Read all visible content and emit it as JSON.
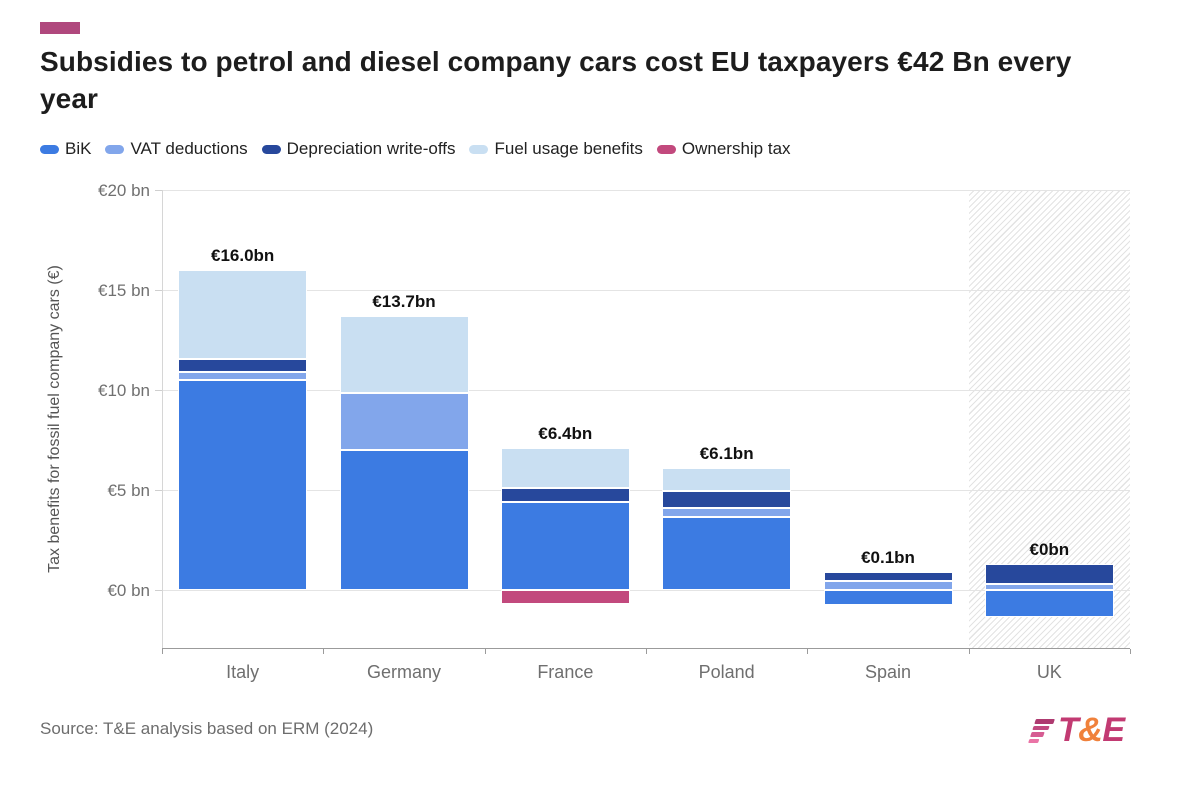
{
  "header": {
    "accent_color": "#B0487D",
    "title": "Subsidies to petrol and diesel company cars cost EU taxpayers €42 Bn every year"
  },
  "chart_data": {
    "type": "bar",
    "stacked": true,
    "title": "Subsidies to petrol and diesel company cars cost EU taxpayers €42 Bn every year",
    "ylabel": "Tax benefits for fossil fuel company cars (€)",
    "xlabel": "",
    "categories": [
      "Italy",
      "Germany",
      "France",
      "Poland",
      "Spain",
      "UK"
    ],
    "series": [
      {
        "name": "BiK",
        "color": "#3C7BE2",
        "values": [
          10.5,
          7.0,
          4.38,
          3.65,
          -0.75,
          -1.35
        ]
      },
      {
        "name": "VAT deductions",
        "color": "#82A6EB",
        "values": [
          0.4,
          2.85,
          0,
          0.45,
          0.43,
          0.3
        ]
      },
      {
        "name": "Depreciation write-offs",
        "color": "#27489C",
        "values": [
          0.65,
          0,
          0.7,
          0.85,
          0.45,
          1.0
        ]
      },
      {
        "name": "Fuel usage benefits",
        "color": "#C9DFF2",
        "values": [
          4.45,
          3.85,
          2.0,
          1.15,
          0,
          0
        ]
      },
      {
        "name": "Ownership tax",
        "color": "#C2497D",
        "values": [
          0,
          0,
          -0.7,
          0,
          0,
          0
        ]
      }
    ],
    "totals": [
      "€16.0bn",
      "€13.7bn",
      "€6.4bn",
      "€6.1bn",
      "€0.1bn",
      "€0bn"
    ],
    "yticks": [
      {
        "label": "€20 bn",
        "value": 20
      },
      {
        "label": "€15 bn",
        "value": 15
      },
      {
        "label": "€10 bn",
        "value": 10
      },
      {
        "label": "€5 bn",
        "value": 5
      },
      {
        "label": "€0 bn",
        "value": 0
      }
    ],
    "ylim": [
      -2.9,
      20
    ],
    "grid": true,
    "legend_position": "top",
    "hatched_category": "UK"
  },
  "footer": {
    "source": "Source: T&E analysis based on ERM (2024)",
    "logo": {
      "letters": [
        {
          "char": "T",
          "color": "#C23A72"
        },
        {
          "char": "&",
          "color": "#F0813B"
        },
        {
          "char": "E",
          "color": "#C23A72"
        }
      ],
      "stripe_colors": [
        "#AE3A70",
        "#C14A80",
        "#D65C92",
        "#EA74A6"
      ]
    }
  }
}
